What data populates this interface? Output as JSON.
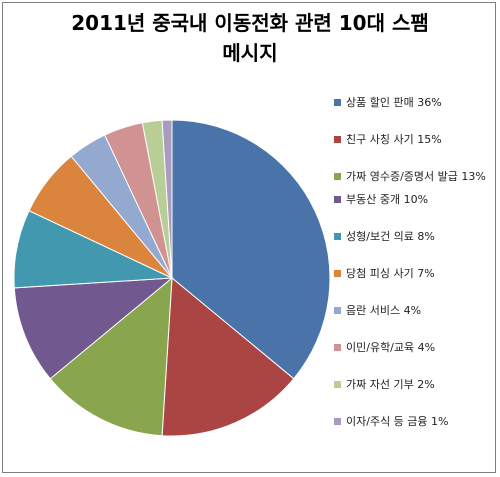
{
  "chart_data": {
    "type": "pie",
    "title_line1": "2011년 중국내 이동전화 관련 10대 스팸",
    "title_line2": "메시지",
    "legend_position": "right",
    "slices": [
      {
        "label": "상품 할인 판매 36%",
        "value": 36,
        "color": "#4a73aa"
      },
      {
        "label": "친구 사칭 사기 15%",
        "value": 15,
        "color": "#ab4543"
      },
      {
        "label": "가짜 영수증/증명서 발급 13%",
        "value": 13,
        "color": "#89a54e"
      },
      {
        "label": "부동산 중개 10%",
        "value": 10,
        "color": "#71588f"
      },
      {
        "label": "성형/보건 의료 8%",
        "value": 8,
        "color": "#4198af"
      },
      {
        "label": "당첨 피싱 사기 7%",
        "value": 7,
        "color": "#db843d"
      },
      {
        "label": "음란 서비스 4%",
        "value": 4,
        "color": "#93a9cf"
      },
      {
        "label": "이민/유학/교육 4%",
        "value": 4,
        "color": "#d19392"
      },
      {
        "label": "가짜 자선 기부 2%",
        "value": 2,
        "color": "#b9cd96"
      },
      {
        "label": "이자/주식 등 금융 1%",
        "value": 1,
        "color": "#a99bbd"
      }
    ]
  }
}
